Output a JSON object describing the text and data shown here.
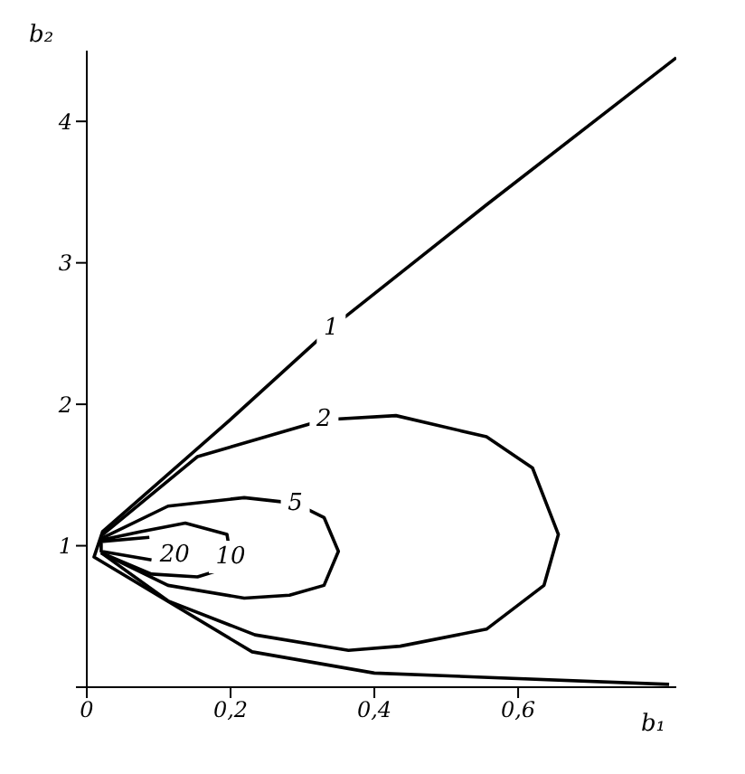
{
  "chart_data": {
    "type": "line",
    "xlabel": "b₁",
    "ylabel": "b₂",
    "xlim": [
      0,
      0.82
    ],
    "ylim": [
      0,
      4.5
    ],
    "xticks": [
      {
        "value": 0,
        "label": "0"
      },
      {
        "value": 0.2,
        "label": "0,2"
      },
      {
        "value": 0.4,
        "label": "0,4"
      },
      {
        "value": 0.6,
        "label": "0,6"
      }
    ],
    "yticks": [
      {
        "value": 0,
        "label": null
      },
      1,
      2,
      3,
      4
    ],
    "grid": false,
    "legend": false,
    "marker": "none",
    "line_style": "solid",
    "series": [
      {
        "name": "1",
        "color": "#000000",
        "x": [
          0.82,
          0.556,
          0.34,
          0.195,
          0.022,
          0.01,
          0.23,
          0.4,
          0.81
        ],
        "values": [
          4.45,
          3.41,
          2.54,
          1.87,
          1.1,
          0.92,
          0.25,
          0.1,
          0.02
        ]
      },
      {
        "name": "2",
        "color": "#000000",
        "x": [
          0.02,
          0.154,
          0.33,
          0.43,
          0.556,
          0.62,
          0.656,
          0.636,
          0.556,
          0.436,
          0.364,
          0.234,
          0.113,
          0.02
        ],
        "values": [
          1.07,
          1.63,
          1.89,
          1.92,
          1.77,
          1.55,
          1.08,
          0.72,
          0.41,
          0.29,
          0.26,
          0.37,
          0.61,
          0.95
        ]
      },
      {
        "name": "5",
        "color": "#000000",
        "x": [
          0.02,
          0.113,
          0.219,
          0.29,
          0.33,
          0.35,
          0.33,
          0.282,
          0.219,
          0.113,
          0.02
        ],
        "values": [
          1.05,
          1.28,
          1.34,
          1.3,
          1.2,
          0.96,
          0.72,
          0.65,
          0.63,
          0.72,
          0.95
        ]
      },
      {
        "name": "10",
        "color": "#000000",
        "x": [
          0.02,
          0.075,
          0.137,
          0.195,
          0.2,
          0.186,
          0.154,
          0.09,
          0.02
        ],
        "values": [
          1.04,
          1.1,
          1.16,
          1.08,
          0.92,
          0.83,
          0.78,
          0.8,
          0.95
        ]
      },
      {
        "name": "20",
        "color": "#000000",
        "x": [
          0.087,
          0.02,
          0.02,
          0.09
        ],
        "values": [
          1.06,
          1.03,
          0.96,
          0.9
        ]
      }
    ]
  }
}
